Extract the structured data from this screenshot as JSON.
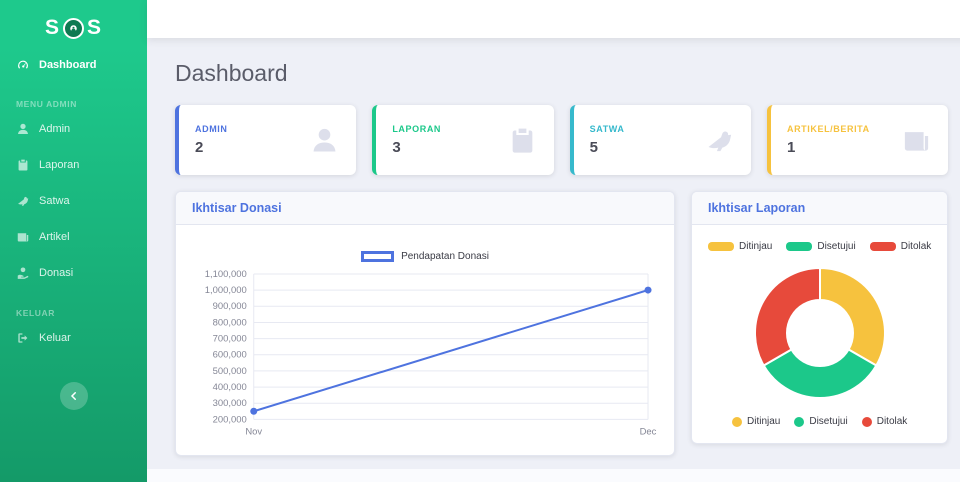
{
  "brand": {
    "name": "SOS",
    "text_left": "S",
    "text_right": "S"
  },
  "sidebar": {
    "dashboard_label": "Dashboard",
    "section_menu": "MENU ADMIN",
    "section_keluar": "KELUAR",
    "items": [
      {
        "label": "Admin"
      },
      {
        "label": "Laporan"
      },
      {
        "label": "Satwa"
      },
      {
        "label": "Artikel"
      },
      {
        "label": "Donasi"
      }
    ],
    "logout_label": "Keluar"
  },
  "page": {
    "title": "Dashboard"
  },
  "cards": [
    {
      "label": "ADMIN",
      "value": "2",
      "accent": "#4e73df",
      "icon": "user-icon"
    },
    {
      "label": "LAPORAN",
      "value": "3",
      "accent": "#1cc88a",
      "icon": "clipboard-icon"
    },
    {
      "label": "SATWA",
      "value": "5",
      "accent": "#36b9cc",
      "icon": "dove-icon"
    },
    {
      "label": "ARTIKEL/BERITA",
      "value": "1",
      "accent": "#f6c23e",
      "icon": "newspaper-icon"
    }
  ],
  "panels": {
    "donasi_title": "Ikhtisar Donasi",
    "laporan_title": "Ikhtisar Laporan"
  },
  "chart_data": [
    {
      "type": "line",
      "title": "Ikhtisar Donasi",
      "x": [
        "Nov",
        "Dec"
      ],
      "series": [
        {
          "name": "Pendapatan Donasi",
          "values": [
            250000,
            1000000
          ]
        }
      ],
      "ylim": [
        200000,
        1100000
      ],
      "ytick_step": 100000,
      "ytick_labels": [
        "200,000",
        "300,000",
        "400,000",
        "500,000",
        "600,000",
        "700,000",
        "800,000",
        "900,000",
        "1,000,000",
        "1,100,000"
      ],
      "line_color": "#4e73df",
      "grid": true,
      "legend_position": "top"
    },
    {
      "type": "pie",
      "title": "Ikhtisar Laporan",
      "labels": [
        "Ditinjau",
        "Disetujui",
        "Ditolak"
      ],
      "values": [
        1,
        1,
        1
      ],
      "colors": [
        "#f6c23e",
        "#1cc88a",
        "#e74a3b"
      ],
      "cutout_ratio": 0.5,
      "legend_positions": [
        "top",
        "bottom"
      ]
    }
  ]
}
